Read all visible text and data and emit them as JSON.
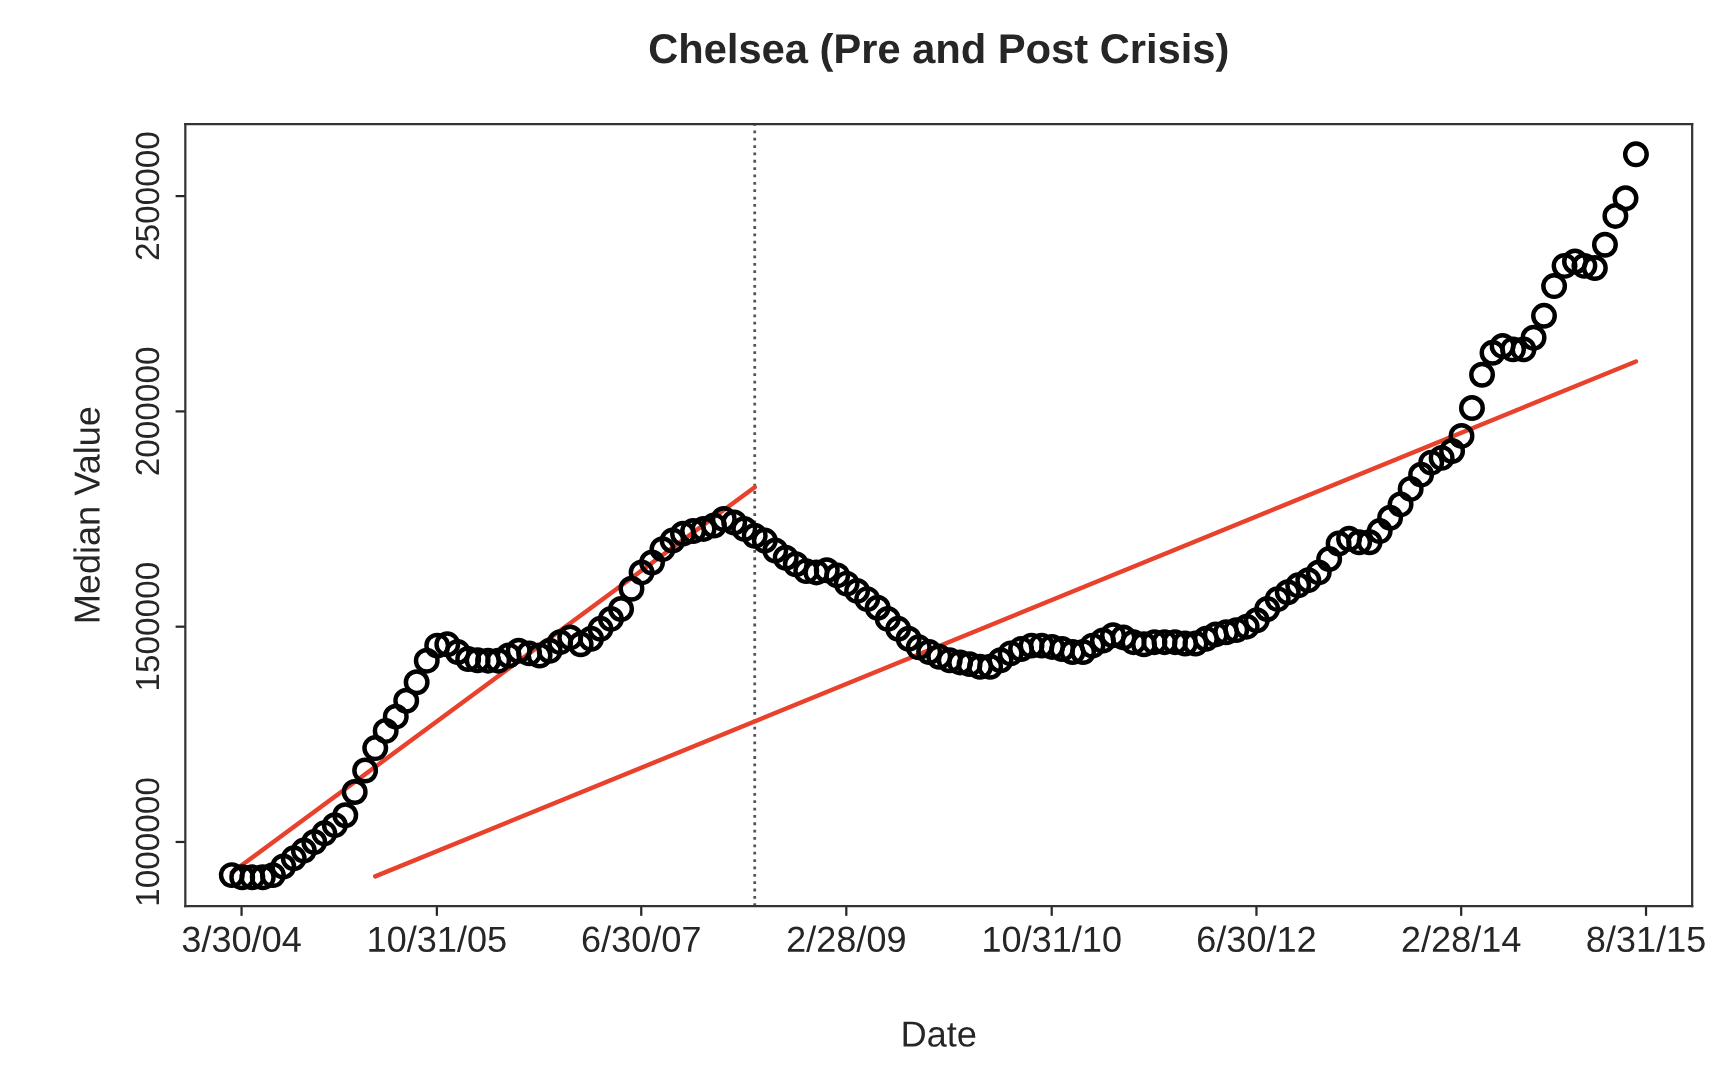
{
  "chart_data": {
    "type": "scatter",
    "title": "Chelsea (Pre and Post Crisis)",
    "xlabel": "Date",
    "ylabel": "Median Value",
    "xlim": [
      "2003-10-15",
      "2016-01-15"
    ],
    "ylim": [
      851000,
      2667000
    ],
    "xticks": [
      {
        "value": "2004-03-30",
        "label": "3/30/04"
      },
      {
        "value": "2005-10-31",
        "label": "10/31/05"
      },
      {
        "value": "2007-06-30",
        "label": "6/30/07"
      },
      {
        "value": "2009-02-28",
        "label": "2/28/09"
      },
      {
        "value": "2010-10-31",
        "label": "10/31/10"
      },
      {
        "value": "2012-06-30",
        "label": "6/30/12"
      },
      {
        "value": "2014-02-28",
        "label": "2/28/14"
      },
      {
        "value": "2015-08-31",
        "label": "8/31/15"
      }
    ],
    "yticks": [
      1000000,
      1500000,
      2000000,
      2500000
    ],
    "ref_lines": [
      {
        "axis": "x",
        "value": "2008-06",
        "color": "#555555",
        "line_style": "dotted"
      }
    ],
    "series": [
      {
        "color": "#000000",
        "marker": "circle",
        "x": [
          "2004-03",
          "2004-04",
          "2004-05",
          "2004-06",
          "2004-07",
          "2004-08",
          "2004-09",
          "2004-10",
          "2004-11",
          "2004-12",
          "2005-01",
          "2005-02",
          "2005-03",
          "2005-04",
          "2005-05",
          "2005-06",
          "2005-07",
          "2005-08",
          "2005-09",
          "2005-10",
          "2005-11",
          "2005-12",
          "2006-01",
          "2006-02",
          "2006-03",
          "2006-04",
          "2006-05",
          "2006-06",
          "2006-07",
          "2006-08",
          "2006-09",
          "2006-10",
          "2006-11",
          "2006-12",
          "2007-01",
          "2007-02",
          "2007-03",
          "2007-04",
          "2007-05",
          "2007-06",
          "2007-07",
          "2007-08",
          "2007-09",
          "2007-10",
          "2007-11",
          "2007-12",
          "2008-01",
          "2008-02",
          "2008-03",
          "2008-04",
          "2008-05",
          "2008-06",
          "2008-07",
          "2008-08",
          "2008-09",
          "2008-10",
          "2008-11",
          "2008-12",
          "2009-01",
          "2009-02",
          "2009-03",
          "2009-04",
          "2009-05",
          "2009-06",
          "2009-07",
          "2009-08",
          "2009-09",
          "2009-10",
          "2009-11",
          "2009-12",
          "2010-01",
          "2010-02",
          "2010-03",
          "2010-04",
          "2010-05",
          "2010-06",
          "2010-07",
          "2010-08",
          "2010-09",
          "2010-10",
          "2010-11",
          "2010-12",
          "2011-01",
          "2011-02",
          "2011-03",
          "2011-04",
          "2011-05",
          "2011-06",
          "2011-07",
          "2011-08",
          "2011-09",
          "2011-10",
          "2011-11",
          "2011-12",
          "2012-01",
          "2012-02",
          "2012-03",
          "2012-04",
          "2012-05",
          "2012-06",
          "2012-07",
          "2012-08",
          "2012-09",
          "2012-10",
          "2012-11",
          "2012-12",
          "2013-01",
          "2013-02",
          "2013-03",
          "2013-04",
          "2013-05",
          "2013-06",
          "2013-07",
          "2013-08",
          "2013-09",
          "2013-10",
          "2013-11",
          "2013-12",
          "2014-01",
          "2014-02",
          "2014-03",
          "2014-04",
          "2014-05",
          "2014-06",
          "2014-07",
          "2014-08",
          "2014-09",
          "2014-10",
          "2014-11",
          "2014-12",
          "2015-01",
          "2015-02",
          "2015-03",
          "2015-04",
          "2015-05",
          "2015-06",
          "2015-07",
          "2015-08"
        ],
        "values": [
          923000,
          918000,
          918000,
          918000,
          923000,
          943000,
          962000,
          980000,
          1000000,
          1020000,
          1039000,
          1062000,
          1116000,
          1166000,
          1218000,
          1258000,
          1291000,
          1328000,
          1371000,
          1421000,
          1456000,
          1459000,
          1441000,
          1425000,
          1422000,
          1421000,
          1421000,
          1433000,
          1444000,
          1438000,
          1433000,
          1444000,
          1464000,
          1475000,
          1459000,
          1472000,
          1495000,
          1518000,
          1541000,
          1588000,
          1626000,
          1649000,
          1680000,
          1700000,
          1716000,
          1722000,
          1727000,
          1735000,
          1750000,
          1742000,
          1727000,
          1711000,
          1700000,
          1677000,
          1660000,
          1645000,
          1629000,
          1626000,
          1631000,
          1619000,
          1600000,
          1583000,
          1564000,
          1544000,
          1518000,
          1495000,
          1472000,
          1452000,
          1441000,
          1430000,
          1422000,
          1417000,
          1413000,
          1407000,
          1407000,
          1422000,
          1438000,
          1448000,
          1456000,
          1456000,
          1453000,
          1448000,
          1441000,
          1441000,
          1456000,
          1468000,
          1480000,
          1475000,
          1464000,
          1459000,
          1464000,
          1464000,
          1464000,
          1461000,
          1461000,
          1472000,
          1482000,
          1487000,
          1492000,
          1500000,
          1515000,
          1541000,
          1564000,
          1580000,
          1596000,
          1608000,
          1626000,
          1657000,
          1693000,
          1704000,
          1696000,
          1696000,
          1722000,
          1753000,
          1784000,
          1820000,
          1853000,
          1881000,
          1892000,
          1908000,
          1943000,
          2008000,
          2085000,
          2136000,
          2152000,
          2144000,
          2144000,
          2171000,
          2222000,
          2291000,
          2338000,
          2348000,
          2338000,
          2333000,
          2387000,
          2454000,
          2495000,
          2597000
        ]
      },
      {
        "type": "line",
        "color": "#e8412c",
        "x": [
          "2004-03",
          "2008-06"
        ],
        "values": [
          929000,
          1824000
        ]
      },
      {
        "type": "line",
        "color": "#e8412c",
        "x": [
          "2005-05",
          "2015-08"
        ],
        "values": [
          920000,
          2116000
        ]
      }
    ]
  }
}
